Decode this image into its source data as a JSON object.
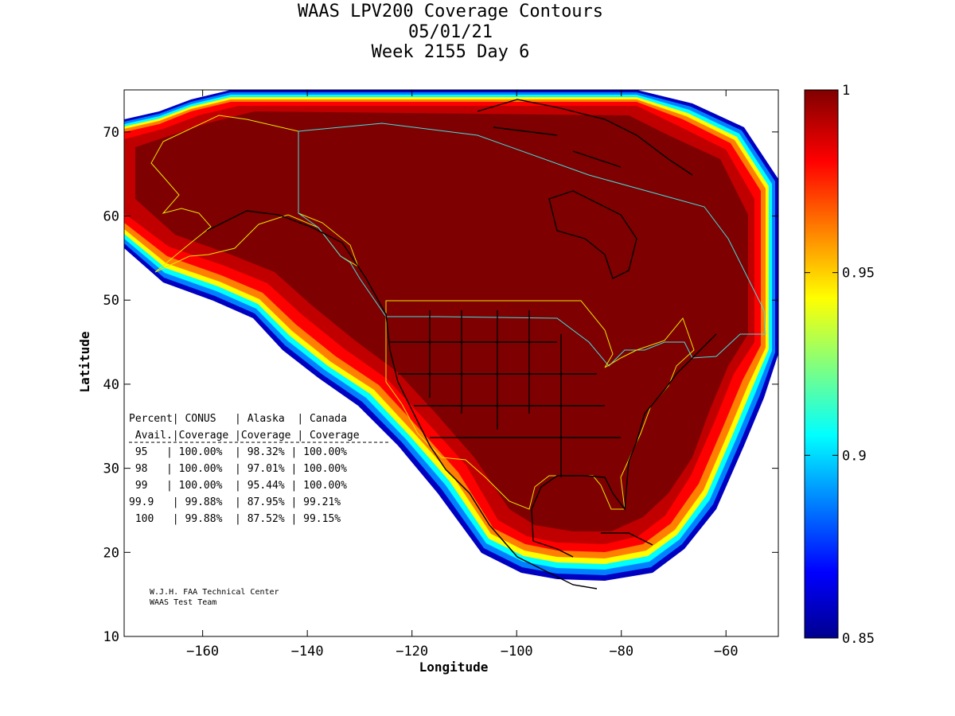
{
  "title": {
    "line1": "WAAS LPV200 Coverage Contours",
    "line2": "05/01/21",
    "line3": "Week 2155 Day 6"
  },
  "axes": {
    "xlabel": "Longitude",
    "ylabel": "Latitude",
    "xticks": [
      -160,
      -140,
      -120,
      -100,
      -80,
      -60
    ],
    "yticks": [
      10,
      20,
      30,
      40,
      50,
      60,
      70
    ],
    "xlim": [
      -175,
      -50
    ],
    "ylim": [
      10,
      75
    ]
  },
  "colorbar": {
    "ticks": [
      {
        "value": 1,
        "label": "1"
      },
      {
        "value": 0.95,
        "label": "0.95"
      },
      {
        "value": 0.9,
        "label": "0.9"
      },
      {
        "value": 0.85,
        "label": "0.85"
      }
    ],
    "range": [
      0.85,
      1
    ]
  },
  "table": {
    "header1": "Percent| CONUS   | Alaska  | Canada",
    "header2": " Avail.|Coverage |Coverage | Coverage",
    "rows": [
      " 95   | 100.00%  | 98.32% | 100.00%",
      " 98   | 100.00%  | 97.01% | 100.00%",
      " 99   | 100.00%  | 95.44% | 100.00%",
      "99.9   | 99.88%  | 87.95% | 99.21%",
      " 100   | 99.88%  | 87.52% | 99.15%"
    ]
  },
  "credits": {
    "line1": "W.J.H. FAA Technical Center",
    "line2": "WAAS Test Team"
  },
  "colors": {
    "dark_red": "#7f0000",
    "red": "#c00000",
    "bright_red": "#ff0000",
    "orange": "#ff8000",
    "yellow": "#ffff00",
    "cyan": "#00ffff",
    "blue": "#0000ff",
    "navy": "#00008f",
    "boundary_yellow": "#e8e800",
    "boundary_cyan": "#40e0e0"
  }
}
